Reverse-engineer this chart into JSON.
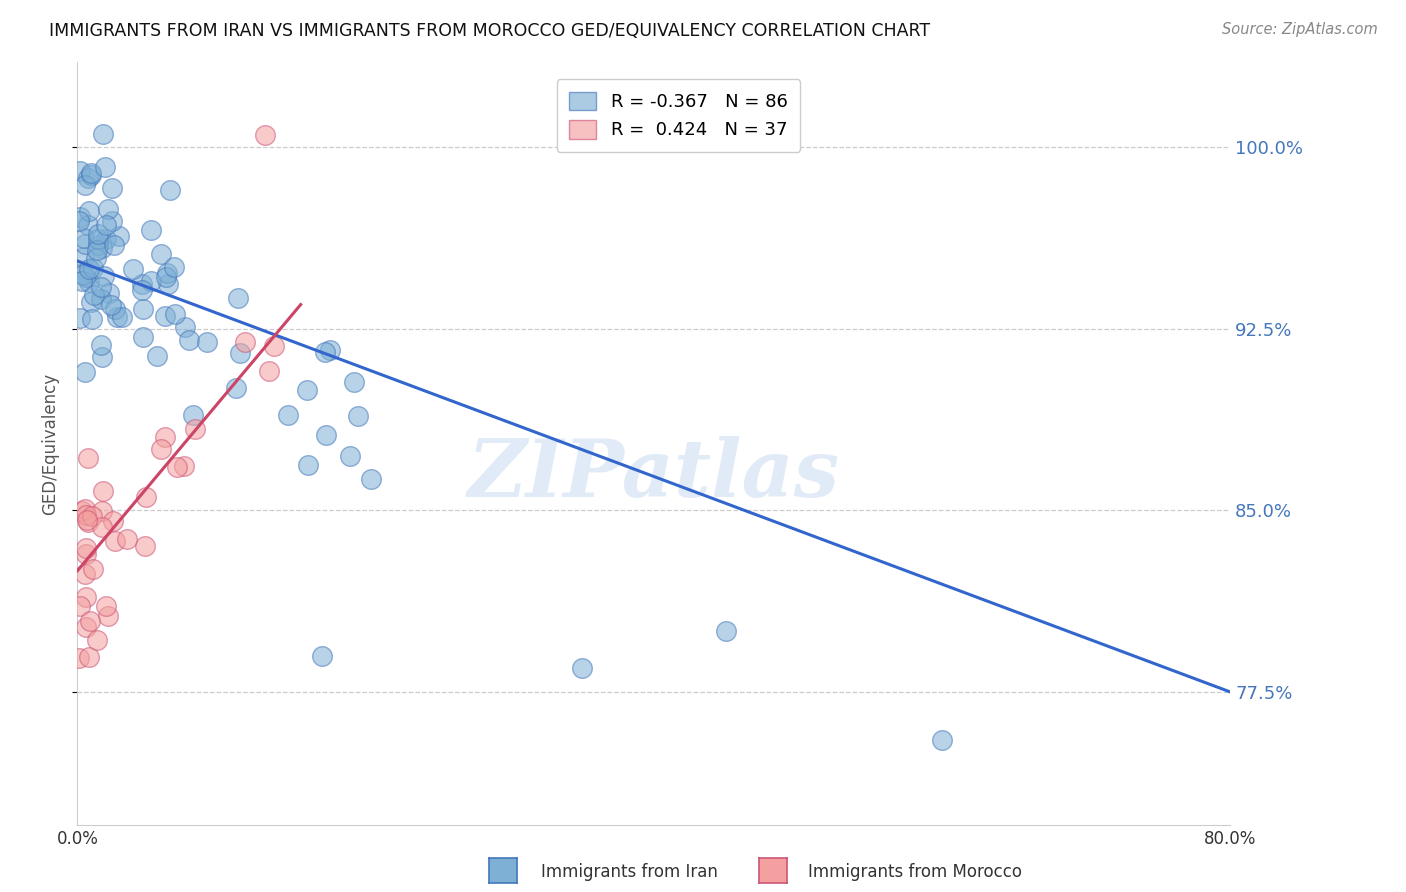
{
  "title": "IMMIGRANTS FROM IRAN VS IMMIGRANTS FROM MOROCCO GED/EQUIVALENCY CORRELATION CHART",
  "source": "Source: ZipAtlas.com",
  "ylabel": "GED/Equivalency",
  "xmin": 0.0,
  "xmax": 80.0,
  "ymin": 72.0,
  "ymax": 103.5,
  "yticks": [
    77.5,
    85.0,
    92.5,
    100.0
  ],
  "ytick_labels": [
    "77.5%",
    "85.0%",
    "92.5%",
    "100.0%"
  ],
  "legend_iran_R": "-0.367",
  "legend_iran_N": "86",
  "legend_morocco_R": "0.424",
  "legend_morocco_N": "37",
  "iran_color": "#7EB0D5",
  "morocco_color": "#F4A0A0",
  "iran_edge_color": "#4477BB",
  "morocco_edge_color": "#CC5577",
  "iran_line_color": "#3366CC",
  "morocco_line_color": "#CC4466",
  "watermark": "ZIPatlas",
  "background_color": "#ffffff",
  "iran_line_y0": 95.3,
  "iran_line_y1": 77.5,
  "morocco_line_x0": 0.0,
  "morocco_line_y0": 82.5,
  "morocco_line_x1": 15.5,
  "morocco_line_y1": 93.5,
  "grid_color": "#cccccc",
  "ytick_color": "#4477BB",
  "xtick_label_left": "0.0%",
  "xtick_label_right": "80.0%",
  "legend_label_iran": "Immigrants from Iran",
  "legend_label_morocco": "Immigrants from Morocco"
}
